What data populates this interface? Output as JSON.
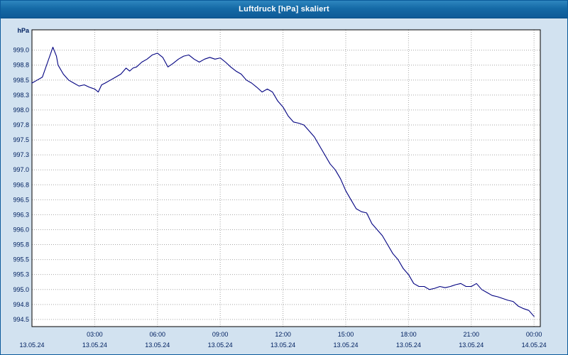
{
  "window": {
    "title": "Luftdruck [hPa] skaliert"
  },
  "chart_data": {
    "type": "line",
    "title": "Luftdruck [hPa] skaliert",
    "ylabel": "hPa",
    "xlabel": "",
    "legend": "none",
    "grid": true,
    "line_color": "#000080",
    "grid_color": "#a6a6a6",
    "axis_text_color": "#002060",
    "plot_bg": "#ffffff",
    "outer_bg": "#d2e2f0",
    "ylim_display": [
      994.38,
      999.34
    ],
    "xlim_hours": [
      0,
      24.3
    ],
    "yticks": [
      {
        "value": 999.0,
        "label": "999.0"
      },
      {
        "value": 998.75,
        "label": "998.8"
      },
      {
        "value": 998.5,
        "label": "998.5"
      },
      {
        "value": 998.25,
        "label": "998.3"
      },
      {
        "value": 998.0,
        "label": "998.0"
      },
      {
        "value": 997.75,
        "label": "997.8"
      },
      {
        "value": 997.5,
        "label": "997.5"
      },
      {
        "value": 997.25,
        "label": "997.3"
      },
      {
        "value": 997.0,
        "label": "997.0"
      },
      {
        "value": 996.75,
        "label": "996.8"
      },
      {
        "value": 996.5,
        "label": "996.5"
      },
      {
        "value": 996.25,
        "label": "996.3"
      },
      {
        "value": 996.0,
        "label": "996.0"
      },
      {
        "value": 995.75,
        "label": "995.8"
      },
      {
        "value": 995.5,
        "label": "995.5"
      },
      {
        "value": 995.25,
        "label": "995.3"
      },
      {
        "value": 995.0,
        "label": "995.0"
      },
      {
        "value": 994.75,
        "label": "994.8"
      },
      {
        "value": 994.5,
        "label": "994.5"
      }
    ],
    "x_origin_date": "13.05.24",
    "xticks": [
      {
        "hour": 3,
        "time": "03:00",
        "date": "13.05.24"
      },
      {
        "hour": 6,
        "time": "06:00",
        "date": "13.05.24"
      },
      {
        "hour": 9,
        "time": "09:00",
        "date": "13.05.24"
      },
      {
        "hour": 12,
        "time": "12:00",
        "date": "13.05.24"
      },
      {
        "hour": 15,
        "time": "15:00",
        "date": "13.05.24"
      },
      {
        "hour": 18,
        "time": "18:00",
        "date": "13.05.24"
      },
      {
        "hour": 21,
        "time": "21:00",
        "date": "13.05.24"
      },
      {
        "hour": 24,
        "time": "00:00",
        "date": "14.05.24"
      }
    ],
    "series": [
      {
        "name": "Luftdruck",
        "x": [
          0,
          0.25,
          0.5,
          0.75,
          1,
          1.17,
          1.25,
          1.5,
          1.75,
          2,
          2.25,
          2.5,
          2.75,
          3,
          3.17,
          3.33,
          3.5,
          3.75,
          4,
          4.25,
          4.5,
          4.67,
          4.83,
          5,
          5.25,
          5.5,
          5.75,
          6,
          6.25,
          6.5,
          6.75,
          7,
          7.25,
          7.5,
          7.75,
          8,
          8.25,
          8.5,
          8.75,
          9,
          9.25,
          9.5,
          9.75,
          10,
          10.25,
          10.5,
          10.75,
          11,
          11.25,
          11.5,
          11.75,
          12,
          12.25,
          12.5,
          12.75,
          13,
          13.25,
          13.5,
          13.75,
          14,
          14.25,
          14.5,
          14.75,
          15,
          15.25,
          15.5,
          15.75,
          16,
          16.25,
          16.5,
          16.75,
          17,
          17.25,
          17.5,
          17.75,
          18,
          18.25,
          18.5,
          18.75,
          19,
          19.25,
          19.5,
          19.75,
          20,
          20.25,
          20.5,
          20.75,
          21,
          21.25,
          21.5,
          21.75,
          22,
          22.25,
          22.5,
          22.75,
          23,
          23.25,
          23.5,
          23.75,
          24
        ],
        "y": [
          998.45,
          998.5,
          998.55,
          998.8,
          999.05,
          998.9,
          998.75,
          998.6,
          998.5,
          998.45,
          998.4,
          998.42,
          998.38,
          998.35,
          998.3,
          998.42,
          998.45,
          998.5,
          998.55,
          998.6,
          998.7,
          998.65,
          998.7,
          998.72,
          998.8,
          998.85,
          998.92,
          998.95,
          998.88,
          998.72,
          998.78,
          998.85,
          998.9,
          998.92,
          998.85,
          998.8,
          998.85,
          998.88,
          998.85,
          998.87,
          998.8,
          998.72,
          998.65,
          998.6,
          998.5,
          998.45,
          998.38,
          998.3,
          998.35,
          998.3,
          998.15,
          998.05,
          997.9,
          997.8,
          997.78,
          997.75,
          997.65,
          997.55,
          997.4,
          997.25,
          997.1,
          997.0,
          996.85,
          996.65,
          996.5,
          996.35,
          996.3,
          996.28,
          996.1,
          996.0,
          995.9,
          995.75,
          995.6,
          995.5,
          995.35,
          995.25,
          995.1,
          995.05,
          995.05,
          995.0,
          995.02,
          995.05,
          995.03,
          995.05,
          995.08,
          995.1,
          995.05,
          995.05,
          995.1,
          995.0,
          994.95,
          994.9,
          994.88,
          994.85,
          994.82,
          994.8,
          994.72,
          994.68,
          994.65,
          994.55
        ]
      }
    ]
  }
}
